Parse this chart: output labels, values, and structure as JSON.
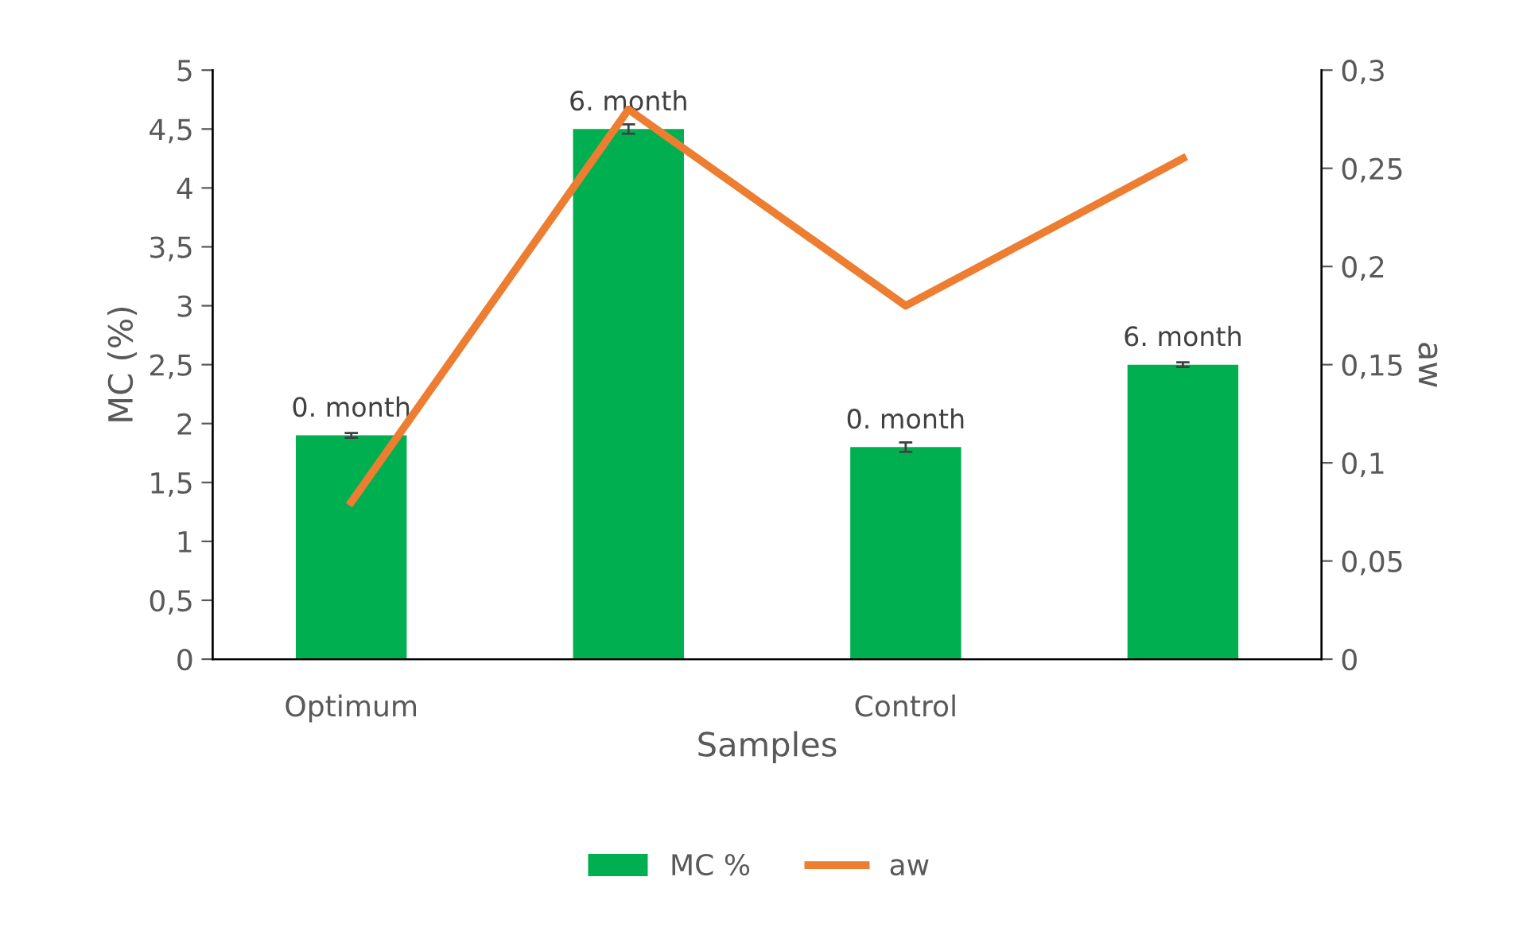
{
  "chart_data": {
    "type": "bar",
    "xlabel": "Samples",
    "ylabel": "MC (%)",
    "y2label": "aw",
    "categories": [
      "Optimum",
      null,
      "Control",
      null
    ],
    "series": [
      {
        "name": "MC %",
        "color": "#00b050",
        "values": [
          1.9,
          4.5,
          1.8,
          2.5
        ],
        "errors": [
          0.02,
          0.04,
          0.04,
          0.02
        ]
      },
      {
        "name": "aw",
        "type": "line",
        "axis": "y2",
        "color": "#ed7d31",
        "values": [
          0.08,
          0.28,
          0.18,
          0.255
        ]
      }
    ],
    "ylim": [
      0,
      5
    ],
    "yticks": [
      0,
      {
        "value": 0.5,
        "label": "0,5"
      },
      1,
      {
        "value": 1.5,
        "label": "1,5"
      },
      2,
      {
        "value": 2.5,
        "label": "2,5"
      },
      3,
      {
        "value": 3.5,
        "label": "3,5"
      },
      4,
      {
        "value": 4.5,
        "label": "4,5"
      },
      5
    ],
    "y2lim": [
      0,
      0.3
    ],
    "y2ticks": [
      0,
      {
        "value": 0.05,
        "label": "0,05"
      },
      {
        "value": 0.1,
        "label": "0,1"
      },
      {
        "value": 0.15,
        "label": "0,15"
      },
      {
        "value": 0.2,
        "label": "0,2"
      },
      {
        "value": 0.25,
        "label": "0,25"
      },
      {
        "value": 0.3,
        "label": "0,3"
      }
    ],
    "annotations": [
      "0. month",
      "6. month",
      "0. month",
      "6. month"
    ],
    "legend": "bottom",
    "marker": "none",
    "line_style": "solid"
  }
}
